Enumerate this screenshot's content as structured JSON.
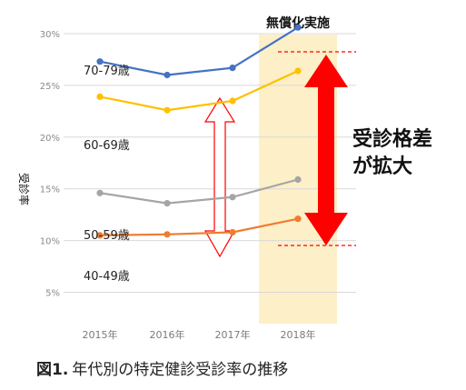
{
  "chart_data": {
    "type": "line",
    "categories": [
      "2015年",
      "2016年",
      "2017年",
      "2018年"
    ],
    "ylabel": "受診率",
    "yticks": [
      "5%",
      "10%",
      "15%",
      "20%",
      "25%",
      "30%"
    ],
    "ylim": [
      5,
      31
    ],
    "grid": true,
    "series": [
      {
        "name": "70-79歳",
        "values": [
          27.3,
          26.0,
          26.7,
          30.6
        ]
      },
      {
        "name": "60-69歳",
        "values": [
          23.9,
          22.6,
          23.5,
          26.4
        ]
      },
      {
        "name": "50-59歳",
        "values": [
          14.6,
          13.6,
          14.2,
          15.9
        ]
      },
      {
        "name": "40-49歳",
        "values": [
          10.5,
          10.6,
          10.8,
          12.1
        ]
      }
    ],
    "highlight": {
      "label": "無償化実施",
      "category": "2018年"
    },
    "annotation": {
      "line1": "受診格差",
      "line2": "が拡大"
    }
  },
  "colors": {
    "70-79歳": "#4472c4",
    "60-69歳": "#ffc000",
    "50-59歳": "#a5a5a5",
    "40-49歳": "#ed7d31",
    "highlight_band": "#fdefc7",
    "gap_arrow": "#ff0000",
    "reference_line": "#ff0000"
  },
  "caption": {
    "fig_no": "図1.",
    "text": "年代別の特定健診受診率の推移"
  }
}
